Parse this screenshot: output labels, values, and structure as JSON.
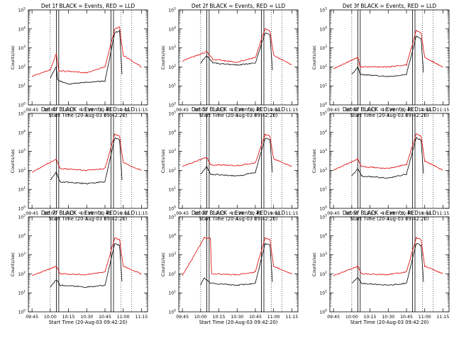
{
  "colors": {
    "events": "#000000",
    "lld": "#e00000",
    "axes": "#000000"
  },
  "chart_data": [
    {
      "type": "line",
      "title": "Det 1f BLACK = Events, RED = LLD",
      "xlabel": "Start Time (20-Aug-03 09:42:20)",
      "ylabel": "Counts/sec",
      "xticks": [
        "09:45",
        "10:00",
        "10:15",
        "10:30",
        "10:45",
        "11:00",
        "11:15"
      ],
      "yticks": [
        "10^0",
        "10^1",
        "10^2",
        "10^3",
        "10^4",
        "10^5"
      ],
      "ylim_log10": [
        0,
        5
      ],
      "scale": "log",
      "series": [
        {
          "name": "Events",
          "color": "#000000",
          "points": [
            [
              "10:00",
              1.4
            ],
            [
              "10:02",
              1.7
            ],
            [
              "10:05",
              2.0
            ],
            [
              "10:06",
              1.3
            ],
            [
              "10:15",
              1.1
            ],
            [
              "10:30",
              1.2
            ],
            [
              "10:45",
              1.25
            ],
            [
              "10:53",
              3.8
            ],
            [
              "10:57",
              3.9
            ],
            [
              "10:59",
              1.6
            ]
          ]
        },
        {
          "name": "LLD",
          "color": "#e00000",
          "points": [
            [
              "09:45",
              1.5
            ],
            [
              "10:00",
              1.85
            ],
            [
              "10:05",
              2.7
            ],
            [
              "10:07",
              1.8
            ],
            [
              "10:30",
              1.7
            ],
            [
              "10:45",
              2.0
            ],
            [
              "10:53",
              4.0
            ],
            [
              "10:57",
              4.1
            ],
            [
              "11:00",
              2.6
            ],
            [
              "11:15",
              2.0
            ]
          ]
        }
      ]
    },
    {
      "type": "line",
      "title": "Det 2f BLACK = Events, RED = LLD",
      "xlabel": "Start Time (20-Aug-03 09:42:20)",
      "ylabel": "Counts/sec",
      "xticks": [
        "09:45",
        "10:00",
        "10:15",
        "10:30",
        "10:45",
        "11:00",
        "11:15"
      ],
      "yticks": [
        "10^0",
        "10^1",
        "10^2",
        "10^3",
        "10^4",
        "10^5"
      ],
      "ylim_log10": [
        0,
        5
      ],
      "scale": "log",
      "series": [
        {
          "name": "Events",
          "color": "#000000",
          "points": [
            [
              "10:00",
              2.2
            ],
            [
              "10:05",
              2.6
            ],
            [
              "10:10",
              2.2
            ],
            [
              "10:30",
              2.1
            ],
            [
              "10:45",
              2.2
            ],
            [
              "10:53",
              3.8
            ],
            [
              "10:57",
              3.7
            ],
            [
              "10:59",
              1.8
            ]
          ]
        },
        {
          "name": "LLD",
          "color": "#e00000",
          "points": [
            [
              "09:45",
              2.3
            ],
            [
              "10:05",
              2.8
            ],
            [
              "10:10",
              2.4
            ],
            [
              "10:30",
              2.25
            ],
            [
              "10:45",
              2.5
            ],
            [
              "10:53",
              4.0
            ],
            [
              "10:57",
              3.9
            ],
            [
              "11:00",
              2.6
            ],
            [
              "11:15",
              2.1
            ]
          ]
        }
      ]
    },
    {
      "type": "line",
      "title": "Det 3f BLACK = Events, RED = LLD",
      "xlabel": "Start Time (20-Aug-03 09:42:20)",
      "ylabel": "Counts/sec",
      "xticks": [
        "09:45",
        "10:00",
        "10:15",
        "10:30",
        "10:45",
        "11:00",
        "11:15"
      ],
      "yticks": [
        "10^0",
        "10^1",
        "10^2",
        "10^3",
        "10^4",
        "10^5"
      ],
      "ylim_log10": [
        0,
        5
      ],
      "scale": "log",
      "series": [
        {
          "name": "Events",
          "color": "#000000",
          "points": [
            [
              "10:00",
              1.6
            ],
            [
              "10:05",
              2.0
            ],
            [
              "10:07",
              1.6
            ],
            [
              "10:30",
              1.5
            ],
            [
              "10:45",
              1.6
            ],
            [
              "10:53",
              3.6
            ],
            [
              "10:57",
              3.5
            ],
            [
              "10:59",
              1.7
            ]
          ]
        },
        {
          "name": "LLD",
          "color": "#e00000",
          "points": [
            [
              "09:45",
              1.9
            ],
            [
              "10:05",
              2.5
            ],
            [
              "10:07",
              2.0
            ],
            [
              "10:30",
              2.0
            ],
            [
              "10:45",
              2.1
            ],
            [
              "10:53",
              3.9
            ],
            [
              "10:57",
              3.8
            ],
            [
              "11:00",
              2.5
            ],
            [
              "11:15",
              2.0
            ]
          ]
        }
      ]
    },
    {
      "type": "line",
      "title": "Det 4f BLACK = Events, RED = LLD",
      "xlabel": "Start Time (20-Aug-03 09:42:20)",
      "ylabel": "Counts/sec",
      "xticks": [
        "09:45",
        "10:00",
        "10:15",
        "10:30",
        "10:45",
        "11:00",
        "11:15"
      ],
      "yticks": [
        "10^0",
        "10^1",
        "10^2",
        "10^3",
        "10^4",
        "10^5"
      ],
      "ylim_log10": [
        0,
        5
      ],
      "scale": "log",
      "series": [
        {
          "name": "Events",
          "color": "#000000",
          "points": [
            [
              "10:00",
              1.5
            ],
            [
              "10:05",
              1.9
            ],
            [
              "10:08",
              1.4
            ],
            [
              "10:30",
              1.3
            ],
            [
              "10:45",
              1.4
            ],
            [
              "10:53",
              3.7
            ],
            [
              "10:57",
              3.6
            ],
            [
              "10:59",
              1.5
            ]
          ]
        },
        {
          "name": "LLD",
          "color": "#e00000",
          "points": [
            [
              "09:45",
              1.9
            ],
            [
              "10:05",
              2.6
            ],
            [
              "10:08",
              2.1
            ],
            [
              "10:30",
              2.0
            ],
            [
              "10:45",
              2.1
            ],
            [
              "10:53",
              3.9
            ],
            [
              "10:57",
              3.8
            ],
            [
              "11:00",
              2.4
            ],
            [
              "11:15",
              2.0
            ]
          ]
        }
      ]
    },
    {
      "type": "line",
      "title": "Det 5f BLACK = Events, RED = LLD",
      "xlabel": "Start Time (20-Aug-03 09:42:20)",
      "ylabel": "Counts/sec",
      "xticks": [
        "09:45",
        "10:00",
        "10:15",
        "10:30",
        "10:45",
        "11:00",
        "11:15"
      ],
      "yticks": [
        "10^0",
        "10^1",
        "10^2",
        "10^3",
        "10^4",
        "10^5"
      ],
      "ylim_log10": [
        0,
        5
      ],
      "scale": "log",
      "series": [
        {
          "name": "Events",
          "color": "#000000",
          "points": [
            [
              "10:00",
              1.8
            ],
            [
              "10:05",
              2.2
            ],
            [
              "10:08",
              1.8
            ],
            [
              "10:30",
              1.7
            ],
            [
              "10:45",
              1.9
            ],
            [
              "10:53",
              3.7
            ],
            [
              "10:57",
              3.6
            ],
            [
              "10:59",
              1.9
            ]
          ]
        },
        {
          "name": "LLD",
          "color": "#e00000",
          "points": [
            [
              "09:45",
              2.2
            ],
            [
              "10:05",
              2.7
            ],
            [
              "10:08",
              2.3
            ],
            [
              "10:30",
              2.25
            ],
            [
              "10:45",
              2.4
            ],
            [
              "10:53",
              3.9
            ],
            [
              "10:57",
              3.8
            ],
            [
              "11:00",
              2.6
            ],
            [
              "11:15",
              2.2
            ]
          ]
        }
      ]
    },
    {
      "type": "line",
      "title": "Det 6f BLACK = Events, RED = LLD",
      "xlabel": "Start Time (20-Aug-03 09:42:20)",
      "ylabel": "Counts/sec",
      "xticks": [
        "09:45",
        "10:00",
        "10:15",
        "10:30",
        "10:45",
        "11:00",
        "11:15"
      ],
      "yticks": [
        "10^0",
        "10^1",
        "10^2",
        "10^3",
        "10^4",
        "10^5"
      ],
      "ylim_log10": [
        0,
        5
      ],
      "scale": "log",
      "series": [
        {
          "name": "Events",
          "color": "#000000",
          "points": [
            [
              "10:00",
              1.7
            ],
            [
              "10:05",
              2.1
            ],
            [
              "10:08",
              1.7
            ],
            [
              "10:30",
              1.6
            ],
            [
              "10:45",
              1.8
            ],
            [
              "10:53",
              3.7
            ],
            [
              "10:57",
              3.6
            ],
            [
              "10:59",
              1.8
            ]
          ]
        },
        {
          "name": "LLD",
          "color": "#e00000",
          "points": [
            [
              "09:45",
              2.0
            ],
            [
              "10:05",
              2.6
            ],
            [
              "10:08",
              2.2
            ],
            [
              "10:30",
              2.1
            ],
            [
              "10:45",
              2.3
            ],
            [
              "10:53",
              3.9
            ],
            [
              "10:57",
              3.8
            ],
            [
              "11:00",
              2.5
            ],
            [
              "11:15",
              2.0
            ]
          ]
        }
      ]
    },
    {
      "type": "line",
      "title": "Det 7f BLACK = Events, RED = LLD",
      "xlabel": "Start Time (20-Aug-03 09:42:20)",
      "ylabel": "Counts/sec",
      "xticks": [
        "09:45",
        "10:00",
        "10:15",
        "10:30",
        "10:45",
        "11:00",
        "11:15"
      ],
      "yticks": [
        "10^0",
        "10^1",
        "10^2",
        "10^3",
        "10^4",
        "10^5"
      ],
      "ylim_log10": [
        0,
        5
      ],
      "scale": "log",
      "series": [
        {
          "name": "Events",
          "color": "#000000",
          "points": [
            [
              "10:00",
              1.3
            ],
            [
              "10:05",
              1.7
            ],
            [
              "10:08",
              1.4
            ],
            [
              "10:30",
              1.3
            ],
            [
              "10:45",
              1.4
            ],
            [
              "10:53",
              3.6
            ],
            [
              "10:57",
              3.5
            ],
            [
              "10:59",
              1.6
            ]
          ]
        },
        {
          "name": "LLD",
          "color": "#e00000",
          "points": [
            [
              "09:45",
              1.9
            ],
            [
              "10:05",
              2.4
            ],
            [
              "10:08",
              2.0
            ],
            [
              "10:30",
              1.95
            ],
            [
              "10:45",
              2.1
            ],
            [
              "10:53",
              3.9
            ],
            [
              "10:57",
              3.8
            ],
            [
              "11:00",
              2.4
            ],
            [
              "11:15",
              2.0
            ]
          ]
        }
      ]
    },
    {
      "type": "line",
      "title": "Det 8f BLACK = Events, RED = LLD",
      "xlabel": "Start Time (20-Aug-03 09:42:20)",
      "ylabel": "Counts/sec",
      "xticks": [
        "09:45",
        "10:00",
        "10:15",
        "10:30",
        "10:45",
        "11:00",
        "11:15"
      ],
      "yticks": [
        "10^0",
        "10^1",
        "10^2",
        "10^3",
        "10^4",
        "10^5"
      ],
      "ylim_log10": [
        0,
        5
      ],
      "scale": "log",
      "series": [
        {
          "name": "Events",
          "color": "#000000",
          "points": [
            [
              "10:00",
              1.4
            ],
            [
              "10:03",
              1.8
            ],
            [
              "10:08",
              1.5
            ],
            [
              "10:30",
              1.4
            ],
            [
              "10:45",
              1.5
            ],
            [
              "10:53",
              3.6
            ],
            [
              "10:57",
              3.5
            ],
            [
              "10:59",
              1.6
            ]
          ]
        },
        {
          "name": "LLD",
          "color": "#e00000",
          "points": [
            [
              "09:45",
              1.9
            ],
            [
              "10:03",
              3.9
            ],
            [
              "10:08",
              3.9
            ],
            [
              "10:09",
              2.0
            ],
            [
              "10:30",
              1.95
            ],
            [
              "10:45",
              2.1
            ],
            [
              "10:53",
              3.9
            ],
            [
              "10:57",
              3.8
            ],
            [
              "11:00",
              2.4
            ],
            [
              "11:15",
              2.0
            ]
          ]
        }
      ]
    },
    {
      "type": "line",
      "title": "Det 9f BLACK = Events, RED = LLD",
      "xlabel": "Start Time (20-Aug-03 09:42:20)",
      "ylabel": "Counts/sec",
      "xticks": [
        "09:45",
        "10:00",
        "10:15",
        "10:30",
        "10:45",
        "11:00",
        "11:15"
      ],
      "yticks": [
        "10^0",
        "10^1",
        "10^2",
        "10^3",
        "10^4",
        "10^5"
      ],
      "ylim_log10": [
        0,
        5
      ],
      "scale": "log",
      "series": [
        {
          "name": "Events",
          "color": "#000000",
          "points": [
            [
              "10:00",
              1.5
            ],
            [
              "10:05",
              1.8
            ],
            [
              "10:08",
              1.5
            ],
            [
              "10:30",
              1.4
            ],
            [
              "10:45",
              1.5
            ],
            [
              "10:53",
              3.6
            ],
            [
              "10:57",
              3.5
            ],
            [
              "10:59",
              1.6
            ]
          ]
        },
        {
          "name": "LLD",
          "color": "#e00000",
          "points": [
            [
              "09:45",
              1.9
            ],
            [
              "10:05",
              2.4
            ],
            [
              "10:08",
              2.0
            ],
            [
              "10:30",
              1.95
            ],
            [
              "10:45",
              2.1
            ],
            [
              "10:53",
              3.9
            ],
            [
              "10:57",
              3.8
            ],
            [
              "11:00",
              2.4
            ],
            [
              "11:15",
              2.0
            ]
          ]
        }
      ]
    }
  ]
}
